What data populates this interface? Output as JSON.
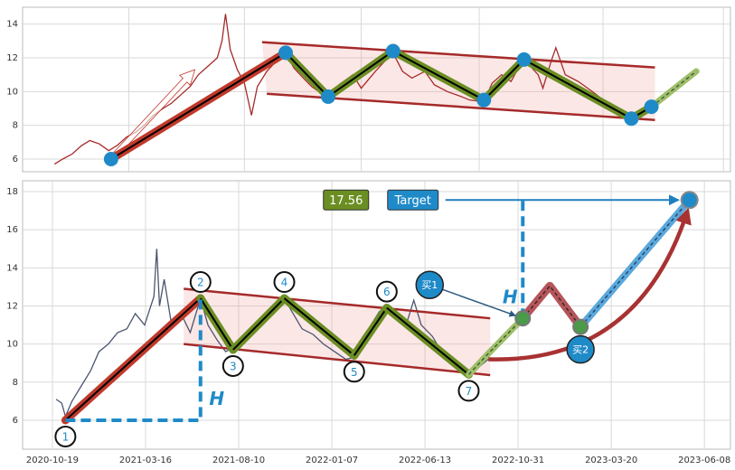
{
  "chart_data": [
    {
      "type": "line",
      "color": "#a52a2a",
      "xlim": [
        -50,
        550
      ],
      "ylim": [
        5.25,
        15.0
      ],
      "yticks": [
        6,
        8,
        10,
        12,
        14
      ],
      "xticks": [
        40,
        138,
        237,
        337,
        442,
        544
      ],
      "grid": true,
      "x": [
        -23,
        -16,
        -8,
        0,
        7,
        15,
        23,
        30,
        38,
        46,
        53,
        61,
        69,
        76,
        84,
        92,
        99,
        107,
        115,
        119,
        122,
        126,
        132,
        138,
        144,
        149,
        157,
        165,
        173,
        180,
        188,
        195,
        203,
        209,
        218,
        230,
        237,
        249,
        257,
        264,
        272,
        280,
        291,
        299,
        310,
        322,
        329,
        341,
        348,
        356,
        364,
        371,
        379,
        387,
        391,
        398,
        402,
        410,
        421,
        433,
        444,
        456,
        466,
        475,
        483
      ],
      "values": [
        5.7,
        6.0,
        6.3,
        6.8,
        7.1,
        6.9,
        6.5,
        6.8,
        7.3,
        7.6,
        8.0,
        8.6,
        9.0,
        9.3,
        9.8,
        10.3,
        11.0,
        11.5,
        12.0,
        13.0,
        14.6,
        12.5,
        11.3,
        10.5,
        8.6,
        10.3,
        11.2,
        11.8,
        12.3,
        11.4,
        10.8,
        10.3,
        9.9,
        9.8,
        10.4,
        11.0,
        10.2,
        11.2,
        11.8,
        12.3,
        11.2,
        10.8,
        11.2,
        10.4,
        10.0,
        9.7,
        9.5,
        9.4,
        10.5,
        11.0,
        10.6,
        11.5,
        11.6,
        11.0,
        10.2,
        11.8,
        12.6,
        11.0,
        10.6,
        10.0,
        9.4,
        9.0,
        8.5,
        8.8,
        9.1
      ],
      "channel": {
        "upper": {
          "x": [
            153,
            486
          ],
          "values": [
            12.93,
            11.43
          ]
        },
        "lower": {
          "x": [
            157,
            486
          ],
          "values": [
            9.87,
            8.32
          ]
        }
      },
      "arrow": {
        "x": [
          25,
          96
        ],
        "values": [
          6.0,
          11.3
        ]
      },
      "pattern": {
        "x": [
          25,
          173,
          209,
          264,
          341,
          375,
          466,
          483
        ],
        "values": [
          6.0,
          12.3,
          9.7,
          12.4,
          9.5,
          11.9,
          8.4,
          9.1
        ]
      },
      "projection": {
        "x": [
          483,
          521
        ],
        "values": [
          9.1,
          11.2
        ]
      }
    },
    {
      "type": "line",
      "color": "#4a5570",
      "xlim": [
        -32,
        728
      ],
      "ylim": [
        4.48,
        18.57
      ],
      "yticks": [
        6,
        8,
        10,
        12,
        14,
        16,
        18
      ],
      "xticks": [
        {
          "value": 0,
          "label": "2020-10-19"
        },
        {
          "value": 100,
          "label": "2021-03-16"
        },
        {
          "value": 200,
          "label": "2021-08-10"
        },
        {
          "value": 300,
          "label": "2022-01-07"
        },
        {
          "value": 400,
          "label": "2022-06-13"
        },
        {
          "value": 500,
          "label": "2022-10-31"
        },
        {
          "value": 600,
          "label": "2023-03-20"
        },
        {
          "value": 700,
          "label": "2023-06-08"
        }
      ],
      "grid": true,
      "x": [
        4,
        10,
        14,
        21,
        31,
        41,
        50,
        60,
        70,
        80,
        89,
        99,
        109,
        112,
        115,
        120,
        128,
        138,
        148,
        159,
        167,
        177,
        186,
        194,
        204,
        216,
        227,
        239,
        249,
        256,
        268,
        280,
        291,
        303,
        315,
        324,
        332,
        342,
        351,
        359,
        369,
        381,
        388,
        396,
        408,
        419,
        431,
        441,
        447,
        458,
        468
      ],
      "values": [
        7.1,
        6.9,
        6.2,
        7.0,
        7.8,
        8.6,
        9.6,
        10.0,
        10.6,
        10.8,
        11.6,
        11.0,
        12.5,
        15.0,
        12.0,
        13.4,
        11.0,
        11.6,
        10.6,
        12.4,
        11.0,
        10.2,
        9.6,
        9.8,
        10.3,
        11.0,
        11.5,
        12.1,
        12.4,
        11.8,
        10.8,
        10.5,
        10.0,
        9.6,
        9.2,
        9.3,
        10.0,
        11.0,
        11.7,
        12.0,
        11.5,
        11.2,
        12.3,
        11.0,
        10.4,
        9.5,
        9.0,
        8.7,
        8.4,
        8.8,
        9.2
      ],
      "channel": {
        "upper": {
          "x": [
            141,
            470
          ],
          "values": [
            12.9,
            11.35
          ]
        },
        "lower": {
          "x": [
            141,
            470
          ],
          "values": [
            10.0,
            8.37
          ]
        }
      },
      "pattern": {
        "x": [
          14,
          159,
          194,
          249,
          324,
          359,
          447
        ],
        "values": [
          6.0,
          12.4,
          9.7,
          12.4,
          9.4,
          11.9,
          8.4
        ],
        "labels": [
          "1",
          "2",
          "3",
          "4",
          "5",
          "6",
          "7"
        ]
      },
      "projection": {
        "x": [
          447,
          468,
          505
        ],
        "values": [
          8.4,
          9.5,
          11.35
        ]
      },
      "height": {
        "label": "H",
        "x": [
          14,
          159,
          159
        ],
        "values": [
          6.0,
          6.0,
          12.4
        ]
      },
      "target_height": {
        "label": "H",
        "x": [
          505,
          505
        ],
        "values": [
          11.35,
          17.56
        ]
      },
      "target": {
        "label": "Target",
        "value": 17.56,
        "x": [
          422,
          684
        ]
      },
      "buys": [
        {
          "label": "买1",
          "x": 505,
          "value": 11.35
        },
        {
          "label": "买2",
          "x": 567,
          "value": 10.9
        }
      ],
      "scenario": {
        "x": [
          505,
          534,
          567
        ],
        "values": [
          11.35,
          13.05,
          10.9
        ]
      },
      "breakout": {
        "x": [
          567,
          684
        ],
        "values": [
          10.9,
          17.56
        ]
      },
      "curve": {
        "x": [
          468,
          682
        ],
        "values": [
          9.2,
          17.0
        ]
      }
    }
  ]
}
